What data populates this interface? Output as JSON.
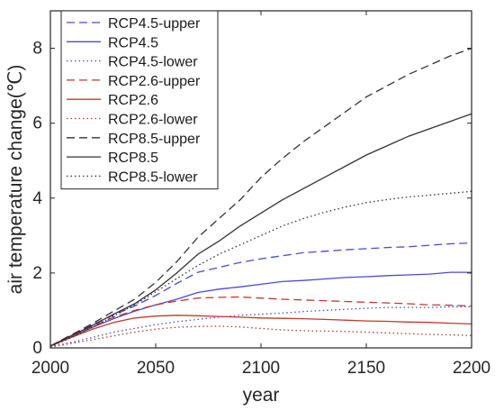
{
  "chart_data": {
    "type": "line",
    "xlabel": "year",
    "ylabel": "air temperature change(℃)",
    "xlim": [
      2000,
      2200
    ],
    "ylim": [
      0,
      9
    ],
    "xticks": [
      2000,
      2050,
      2100,
      2150,
      2200
    ],
    "yticks": [
      0,
      2,
      4,
      6,
      8
    ],
    "grid": false,
    "legend_position": "top-left",
    "series": [
      {
        "name": "RCP4.5-upper",
        "color": "#4a4ad6",
        "style": "dashed",
        "x": [
          2000,
          2010,
          2020,
          2030,
          2040,
          2050,
          2060,
          2070,
          2080,
          2090,
          2100,
          2110,
          2120,
          2130,
          2140,
          2150,
          2160,
          2170,
          2180,
          2190,
          2200
        ],
        "y": [
          0.05,
          0.35,
          0.62,
          0.88,
          1.12,
          1.4,
          1.72,
          2.02,
          2.15,
          2.28,
          2.38,
          2.46,
          2.54,
          2.58,
          2.62,
          2.65,
          2.68,
          2.7,
          2.74,
          2.78,
          2.8
        ]
      },
      {
        "name": "RCP4.5",
        "color": "#4a4ad6",
        "style": "solid",
        "x": [
          2000,
          2010,
          2020,
          2030,
          2040,
          2050,
          2060,
          2070,
          2080,
          2090,
          2100,
          2110,
          2120,
          2130,
          2140,
          2150,
          2160,
          2170,
          2180,
          2190,
          2200
        ],
        "y": [
          0.05,
          0.3,
          0.55,
          0.78,
          0.98,
          1.15,
          1.3,
          1.48,
          1.57,
          1.63,
          1.7,
          1.77,
          1.8,
          1.84,
          1.88,
          1.9,
          1.93,
          1.95,
          1.97,
          2.02,
          2.02
        ]
      },
      {
        "name": "RCP4.5-lower",
        "color": "#4a4ad6",
        "style": "dotted",
        "x": [
          2000,
          2010,
          2020,
          2030,
          2040,
          2050,
          2060,
          2070,
          2080,
          2090,
          2100,
          2110,
          2120,
          2130,
          2140,
          2150,
          2160,
          2170,
          2180,
          2190,
          2200
        ],
        "y": [
          0.03,
          0.15,
          0.28,
          0.42,
          0.52,
          0.62,
          0.7,
          0.76,
          0.82,
          0.87,
          0.9,
          0.93,
          0.97,
          1.0,
          1.03,
          1.06,
          1.08,
          1.08,
          1.08,
          1.1,
          1.1
        ]
      },
      {
        "name": "RCP2.6-upper",
        "color": "#c0392b",
        "style": "dashed",
        "x": [
          2000,
          2010,
          2020,
          2030,
          2040,
          2050,
          2060,
          2070,
          2080,
          2090,
          2100,
          2110,
          2120,
          2130,
          2140,
          2150,
          2160,
          2170,
          2180,
          2190,
          2200
        ],
        "y": [
          0.05,
          0.32,
          0.58,
          0.82,
          1.0,
          1.15,
          1.25,
          1.33,
          1.35,
          1.36,
          1.33,
          1.3,
          1.28,
          1.26,
          1.24,
          1.22,
          1.2,
          1.18,
          1.15,
          1.14,
          1.12
        ]
      },
      {
        "name": "RCP2.6",
        "color": "#c0392b",
        "style": "solid",
        "x": [
          2000,
          2010,
          2020,
          2030,
          2040,
          2050,
          2060,
          2070,
          2080,
          2090,
          2100,
          2110,
          2120,
          2130,
          2140,
          2150,
          2160,
          2170,
          2180,
          2190,
          2200
        ],
        "y": [
          0.05,
          0.28,
          0.5,
          0.68,
          0.8,
          0.85,
          0.87,
          0.86,
          0.84,
          0.82,
          0.8,
          0.79,
          0.78,
          0.76,
          0.74,
          0.72,
          0.71,
          0.69,
          0.68,
          0.66,
          0.64
        ]
      },
      {
        "name": "RCP2.6-lower",
        "color": "#c0392b",
        "style": "dotted",
        "x": [
          2000,
          2010,
          2020,
          2030,
          2040,
          2050,
          2060,
          2070,
          2080,
          2090,
          2100,
          2110,
          2120,
          2130,
          2140,
          2150,
          2160,
          2170,
          2180,
          2190,
          2200
        ],
        "y": [
          0.02,
          0.12,
          0.22,
          0.32,
          0.42,
          0.5,
          0.55,
          0.57,
          0.58,
          0.56,
          0.52,
          0.48,
          0.46,
          0.45,
          0.44,
          0.42,
          0.4,
          0.38,
          0.36,
          0.35,
          0.33
        ]
      },
      {
        "name": "RCP8.5-upper",
        "color": "#333333",
        "style": "dashed",
        "x": [
          2000,
          2010,
          2020,
          2030,
          2040,
          2050,
          2060,
          2070,
          2080,
          2090,
          2100,
          2110,
          2120,
          2130,
          2140,
          2150,
          2160,
          2170,
          2180,
          2190,
          2200
        ],
        "y": [
          0.05,
          0.35,
          0.65,
          0.98,
          1.3,
          1.75,
          2.3,
          2.95,
          3.45,
          3.95,
          4.55,
          5.05,
          5.5,
          5.9,
          6.3,
          6.7,
          7.0,
          7.3,
          7.55,
          7.8,
          8.0
        ]
      },
      {
        "name": "RCP8.5",
        "color": "#333333",
        "style": "solid",
        "x": [
          2000,
          2010,
          2020,
          2030,
          2040,
          2050,
          2060,
          2070,
          2080,
          2090,
          2100,
          2110,
          2120,
          2130,
          2140,
          2150,
          2160,
          2170,
          2180,
          2190,
          2200
        ],
        "y": [
          0.05,
          0.33,
          0.6,
          0.9,
          1.18,
          1.55,
          2.0,
          2.5,
          2.85,
          3.25,
          3.6,
          3.95,
          4.25,
          4.55,
          4.85,
          5.15,
          5.4,
          5.65,
          5.85,
          6.05,
          6.25
        ]
      },
      {
        "name": "RCP8.5-lower",
        "color": "#333333",
        "style": "dotted",
        "x": [
          2000,
          2010,
          2020,
          2030,
          2040,
          2050,
          2060,
          2070,
          2080,
          2090,
          2100,
          2110,
          2120,
          2130,
          2140,
          2150,
          2160,
          2170,
          2180,
          2190,
          2200
        ],
        "y": [
          0.03,
          0.28,
          0.55,
          0.85,
          1.15,
          1.5,
          1.85,
          2.2,
          2.5,
          2.75,
          3.0,
          3.25,
          3.45,
          3.62,
          3.76,
          3.88,
          3.96,
          4.03,
          4.08,
          4.13,
          4.18
        ]
      }
    ]
  }
}
